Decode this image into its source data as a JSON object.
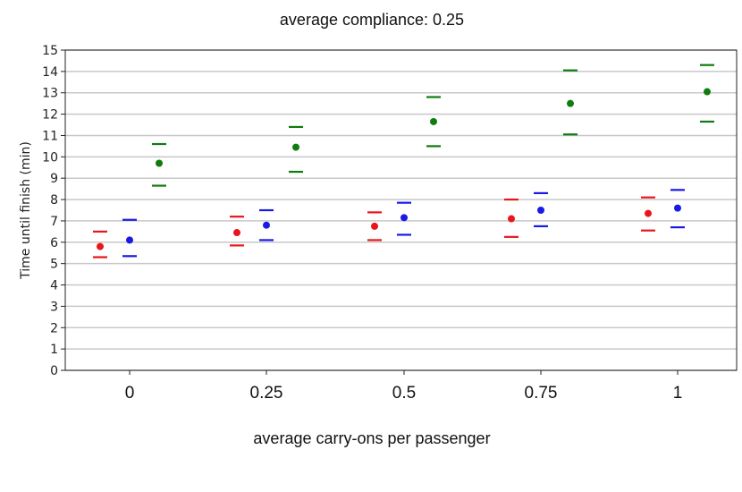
{
  "chart_data": {
    "type": "scatter",
    "title": "average compliance: 0.25",
    "xlabel": "average carry-ons per passenger",
    "ylabel": "Time until finish (min)",
    "categories": [
      "0",
      "0.25",
      "0.5",
      "0.75",
      "1"
    ],
    "ylim": [
      0,
      15
    ],
    "yticks": [
      0,
      1,
      2,
      3,
      4,
      5,
      6,
      7,
      8,
      9,
      10,
      11,
      12,
      13,
      14,
      15
    ],
    "grid": "horizontal",
    "legend": "none",
    "series": [
      {
        "color": "#e8161c",
        "mean": [
          5.8,
          6.45,
          6.75,
          7.1,
          7.35
        ],
        "upper": [
          6.5,
          7.2,
          7.4,
          8.0,
          8.1
        ],
        "lower": [
          5.3,
          5.85,
          6.1,
          6.25,
          6.55
        ]
      },
      {
        "color": "#1a1ae6",
        "mean": [
          6.1,
          6.8,
          7.15,
          7.5,
          7.6
        ],
        "upper": [
          7.05,
          7.5,
          7.85,
          8.3,
          8.45
        ],
        "lower": [
          5.35,
          6.1,
          6.35,
          6.75,
          6.7
        ]
      },
      {
        "color": "#0e7c0e",
        "mean": [
          9.7,
          10.45,
          11.65,
          12.5,
          13.05
        ],
        "upper": [
          10.6,
          11.4,
          12.8,
          14.05,
          14.3
        ],
        "lower": [
          8.65,
          9.3,
          10.5,
          11.05,
          11.65
        ]
      }
    ]
  }
}
